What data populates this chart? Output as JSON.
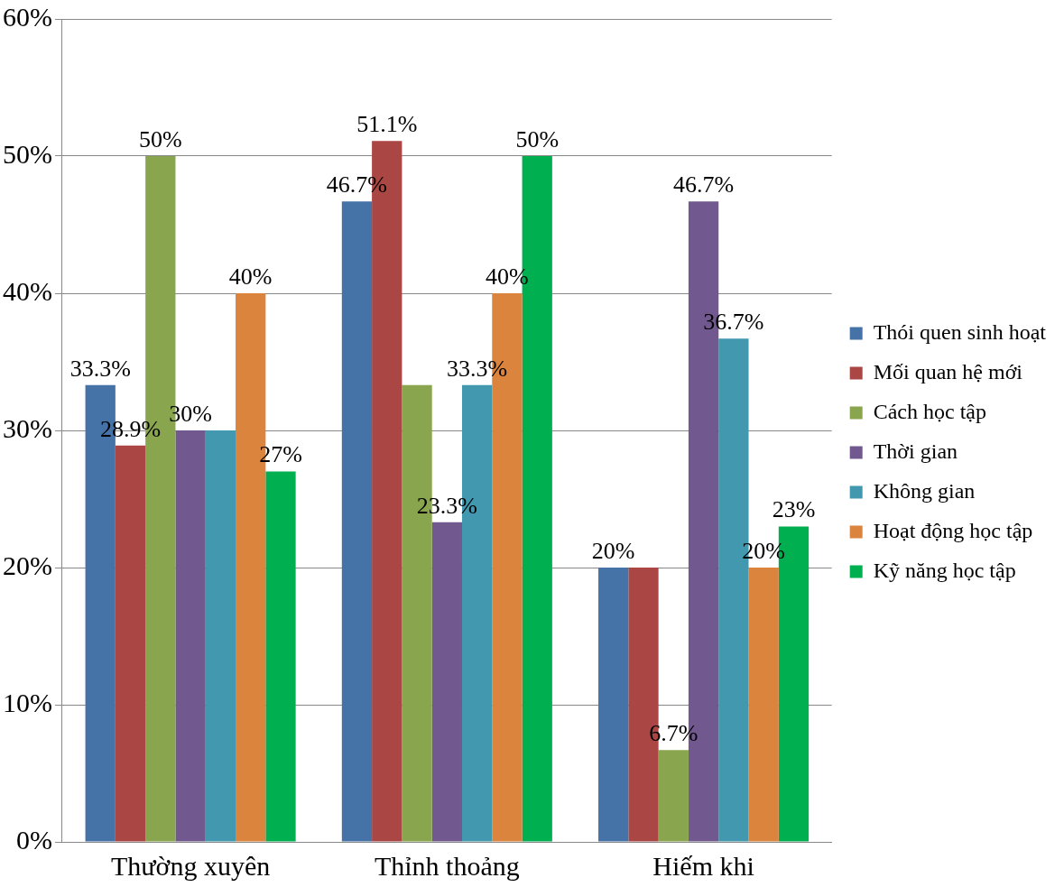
{
  "chart_data": {
    "type": "bar",
    "categories": [
      "Thường xuyên",
      "Thỉnh thoảng",
      "Hiếm khi"
    ],
    "series": [
      {
        "name": "Thói quen sinh hoạt",
        "color": "#4572a7",
        "values": [
          33.3,
          46.7,
          20
        ],
        "value_labels": [
          "33.3%",
          "46.7%",
          "20%"
        ]
      },
      {
        "name": "Mối quan hệ mới",
        "color": "#aa4643",
        "values": [
          28.9,
          51.1,
          20
        ],
        "value_labels": [
          "28.9%",
          "51.1%",
          null
        ]
      },
      {
        "name": "Cách học tập",
        "color": "#89a54e",
        "values": [
          50,
          33.3,
          6.7
        ],
        "value_labels": [
          "50%",
          null,
          "6.7%"
        ]
      },
      {
        "name": "Thời gian",
        "color": "#71588f",
        "values": [
          30,
          23.3,
          46.7
        ],
        "value_labels": [
          "30%",
          "23.3%",
          "46.7%"
        ]
      },
      {
        "name": "Không gian",
        "color": "#4198af",
        "values": [
          30,
          33.3,
          36.7
        ],
        "value_labels": [
          null,
          "33.3%",
          "36.7%"
        ]
      },
      {
        "name": "Hoạt động học tập",
        "color": "#db843d",
        "values": [
          40,
          40,
          20
        ],
        "value_labels": [
          "40%",
          "40%",
          "20%"
        ]
      },
      {
        "name": "Kỹ năng học tập",
        "color": "#00b050",
        "values": [
          27,
          50,
          23
        ],
        "value_labels": [
          "27%",
          "50%",
          "23%"
        ]
      }
    ],
    "ylim": [
      0,
      60
    ],
    "yticks": [
      {
        "value": 0,
        "label": "0%"
      },
      {
        "value": 10,
        "label": "10%"
      },
      {
        "value": 20,
        "label": "20%"
      },
      {
        "value": 30,
        "label": "30%"
      },
      {
        "value": 40,
        "label": "40%"
      },
      {
        "value": 50,
        "label": "50%"
      },
      {
        "value": 60,
        "label": "60%"
      }
    ],
    "grid": "y",
    "legend": "right"
  }
}
